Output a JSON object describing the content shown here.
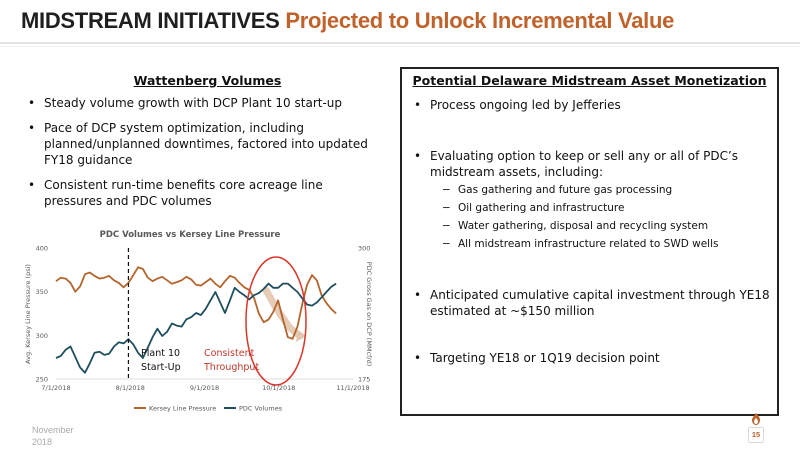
{
  "header": {
    "title_main": "MIDSTREAM INITIATIVES",
    "title_highlight": "Projected to Unlock Incremental Value"
  },
  "left": {
    "heading": "Wattenberg Volumes",
    "bullets": [
      "Steady volume growth with DCP Plant 10 start-up",
      "Pace of DCP system optimization, including planned/unplanned downtimes, factored into updated FY18 guidance",
      "Consistent run-time benefits core acreage line pressures and PDC volumes"
    ]
  },
  "right": {
    "heading": "Potential Delaware Midstream Asset Monetization",
    "bullet1": "Process ongoing led by Jefferies",
    "bullet2": "Evaluating option to keep or sell any or all of PDC’s midstream assets, including:",
    "subs": [
      "Gas gathering and future gas processing",
      "Oil gathering and infrastructure",
      "Water gathering, disposal and recycling system",
      "All midstream infrastructure related to SWD wells"
    ],
    "bullet3": "Anticipated cumulative capital investment through YE18 estimated at ~$150 million",
    "bullet4": "Targeting YE18 or 1Q19 decision point"
  },
  "chart_data": {
    "type": "line",
    "title": "PDC Volumes vs Kersey Line Pressure",
    "ylabel_left": "Avg. Kersey Line Pressure (psi)",
    "ylabel_right": "PDC Gross Gas on DCP (MMcf/d)",
    "ylim_left": [
      250,
      400
    ],
    "ylim_right": [
      175,
      300
    ],
    "yticks_left": [
      250,
      300,
      350,
      400
    ],
    "yticks_right": [
      175,
      300
    ],
    "x_tick_labels": [
      "7/1/2018",
      "8/1/2018",
      "9/1/2018",
      "10/1/2018",
      "11/1/2018"
    ],
    "x_range_days": [
      0,
      123
    ],
    "grid": false,
    "legend": "bottom",
    "series": [
      {
        "name": "Kersey Line Pressure",
        "axis": "left",
        "color": "#b4652d",
        "points": [
          [
            0,
            362
          ],
          [
            2,
            366
          ],
          [
            4,
            365
          ],
          [
            6,
            360
          ],
          [
            8,
            350
          ],
          [
            10,
            356
          ],
          [
            12,
            370
          ],
          [
            14,
            372
          ],
          [
            16,
            368
          ],
          [
            18,
            365
          ],
          [
            20,
            366
          ],
          [
            22,
            368
          ],
          [
            24,
            363
          ],
          [
            26,
            360
          ],
          [
            28,
            355
          ],
          [
            30,
            360
          ],
          [
            32,
            369
          ],
          [
            34,
            378
          ],
          [
            36,
            376
          ],
          [
            38,
            366
          ],
          [
            40,
            362
          ],
          [
            42,
            365
          ],
          [
            44,
            367
          ],
          [
            46,
            363
          ],
          [
            48,
            359
          ],
          [
            50,
            361
          ],
          [
            52,
            363
          ],
          [
            54,
            367
          ],
          [
            56,
            364
          ],
          [
            58,
            358
          ],
          [
            60,
            357
          ],
          [
            62,
            361
          ],
          [
            64,
            365
          ],
          [
            66,
            359
          ],
          [
            68,
            355
          ],
          [
            70,
            362
          ],
          [
            72,
            368
          ],
          [
            74,
            366
          ],
          [
            76,
            360
          ],
          [
            78,
            355
          ],
          [
            80,
            352
          ],
          [
            82,
            343
          ],
          [
            84,
            325
          ],
          [
            86,
            315
          ],
          [
            88,
            318
          ],
          [
            90,
            327
          ],
          [
            92,
            340
          ],
          [
            94,
            318
          ],
          [
            96,
            298
          ],
          [
            98,
            296
          ],
          [
            100,
            310
          ],
          [
            102,
            336
          ],
          [
            104,
            358
          ],
          [
            106,
            369
          ],
          [
            108,
            363
          ],
          [
            110,
            346
          ],
          [
            112,
            337
          ],
          [
            114,
            330
          ],
          [
            116,
            325
          ]
        ]
      },
      {
        "name": "PDC Volumes",
        "axis": "right",
        "color": "#1f4e5f",
        "points": [
          [
            0,
            195
          ],
          [
            2,
            197
          ],
          [
            4,
            203
          ],
          [
            6,
            206
          ],
          [
            8,
            196
          ],
          [
            10,
            186
          ],
          [
            12,
            181
          ],
          [
            14,
            190
          ],
          [
            16,
            200
          ],
          [
            18,
            201
          ],
          [
            20,
            198
          ],
          [
            22,
            199
          ],
          [
            24,
            206
          ],
          [
            26,
            210
          ],
          [
            28,
            209
          ],
          [
            30,
            213
          ],
          [
            32,
            208
          ],
          [
            34,
            200
          ],
          [
            36,
            195
          ],
          [
            38,
            205
          ],
          [
            40,
            215
          ],
          [
            42,
            223
          ],
          [
            44,
            216
          ],
          [
            46,
            220
          ],
          [
            48,
            228
          ],
          [
            50,
            226
          ],
          [
            52,
            225
          ],
          [
            54,
            232
          ],
          [
            56,
            234
          ],
          [
            58,
            238
          ],
          [
            60,
            236
          ],
          [
            62,
            242
          ],
          [
            64,
            250
          ],
          [
            66,
            258
          ],
          [
            68,
            248
          ],
          [
            70,
            238
          ],
          [
            72,
            250
          ],
          [
            74,
            262
          ],
          [
            76,
            258
          ],
          [
            78,
            255
          ],
          [
            80,
            251
          ],
          [
            82,
            255
          ],
          [
            84,
            257
          ],
          [
            86,
            261
          ],
          [
            88,
            266
          ],
          [
            90,
            262
          ],
          [
            92,
            262
          ],
          [
            94,
            266
          ],
          [
            96,
            266
          ],
          [
            98,
            262
          ],
          [
            100,
            258
          ],
          [
            102,
            252
          ],
          [
            104,
            246
          ],
          [
            106,
            245
          ],
          [
            108,
            248
          ],
          [
            110,
            253
          ],
          [
            112,
            258
          ],
          [
            114,
            263
          ],
          [
            116,
            266
          ]
        ]
      }
    ],
    "annotations": {
      "plant_start": {
        "label_lines": [
          "Plant 10",
          "Start-Up"
        ],
        "x_day": 30
      },
      "throughput": {
        "label_lines": [
          "Consistent",
          "Throughput"
        ],
        "color": "#c0392b"
      }
    }
  },
  "footer": {
    "date_line1": "November",
    "date_line2": "2018",
    "page": "15"
  },
  "colors": {
    "accent": "#c0622b",
    "dark_teal": "#1f4e5f",
    "circle_red": "#d9362b"
  }
}
